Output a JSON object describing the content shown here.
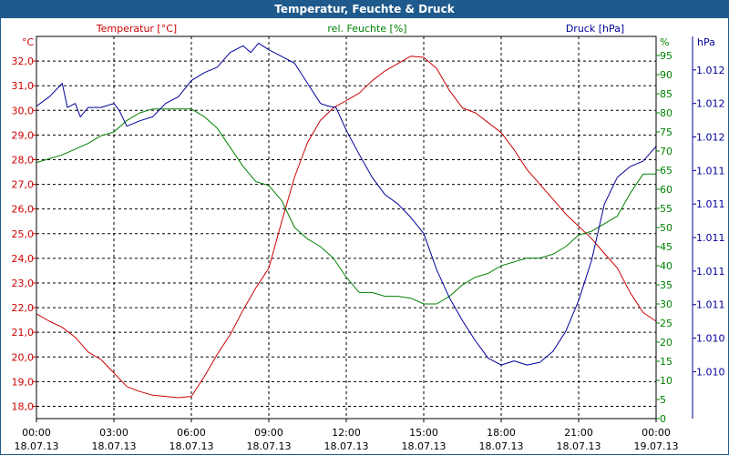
{
  "window": {
    "title": "Temperatur, Feuchte & Druck"
  },
  "colors": {
    "temperature": "#cc0000",
    "humidity": "#008000",
    "pressure": "#000099",
    "titlebar": "#1f5a8c",
    "grid": "#000000",
    "text": "#000000"
  },
  "chart_data": {
    "type": "line",
    "title": "Temperatur, Feuchte & Druck",
    "grid": true,
    "legend_position": "top",
    "x_axis": {
      "unit": "hours",
      "range": [
        0,
        24
      ],
      "ticks": [
        {
          "x": 0,
          "time": "00:00",
          "date": "18.07.13"
        },
        {
          "x": 3,
          "time": "03:00",
          "date": "18.07.13"
        },
        {
          "x": 6,
          "time": "06:00",
          "date": "18.07.13"
        },
        {
          "x": 9,
          "time": "09:00",
          "date": "18.07.13"
        },
        {
          "x": 12,
          "time": "12:00",
          "date": "18.07.13"
        },
        {
          "x": 15,
          "time": "15:00",
          "date": "18.07.13"
        },
        {
          "x": 18,
          "time": "18:00",
          "date": "18.07.13"
        },
        {
          "x": 21,
          "time": "21:00",
          "date": "18.07.13"
        },
        {
          "x": 24,
          "time": "00:00",
          "date": "19.07.13"
        }
      ]
    },
    "axes": {
      "temperature": {
        "unit_label": "°C",
        "range": [
          17.5,
          33.0
        ],
        "ticks": [
          18.0,
          19.0,
          20.0,
          21.0,
          22.0,
          23.0,
          24.0,
          25.0,
          26.0,
          27.0,
          28.0,
          29.0,
          30.0,
          31.0,
          32.0
        ],
        "tick_labels": [
          "18,0",
          "19,0",
          "20,0",
          "21,0",
          "22,0",
          "23,0",
          "24,0",
          "25,0",
          "26,0",
          "27,0",
          "28,0",
          "29,0",
          "30,0",
          "31,0",
          "32,0"
        ]
      },
      "humidity": {
        "unit_label": "%",
        "range": [
          0,
          100
        ],
        "ticks": [
          0,
          5,
          10,
          15,
          20,
          25,
          30,
          35,
          40,
          45,
          50,
          55,
          60,
          65,
          70,
          75,
          80,
          85,
          90,
          95
        ],
        "tick_labels": [
          "0",
          "5",
          "10",
          "15",
          "20",
          "25",
          "30",
          "35",
          "40",
          "45",
          "50",
          "55",
          "60",
          "65",
          "70",
          "75",
          "80",
          "85",
          "90",
          "95"
        ]
      },
      "pressure": {
        "unit_label": "hPa",
        "range": [
          1009.6,
          1012.45
        ],
        "ticks": [
          1009.95,
          1010.2,
          1010.45,
          1010.7,
          1010.95,
          1011.2,
          1011.45,
          1011.7,
          1011.95,
          1012.2
        ],
        "tick_labels": [
          "1.010",
          "1.010",
          "1.011",
          "1.011",
          "1.011",
          "1.011",
          "1.011",
          "1.012",
          "1.012",
          "1.012"
        ]
      }
    },
    "series": [
      {
        "name": "Temperatur [°C]",
        "axis": "temperature",
        "x": [
          0,
          0.5,
          1,
          1.5,
          2,
          2.5,
          3,
          3.5,
          4,
          4.5,
          5,
          5.5,
          6,
          6.5,
          7,
          7.5,
          8,
          8.5,
          9,
          9.5,
          10,
          10.5,
          11,
          11.5,
          12,
          12.5,
          13,
          13.5,
          14,
          14.5,
          15,
          15.5,
          16,
          16.5,
          17,
          17.5,
          18,
          18.5,
          19,
          19.5,
          20,
          20.5,
          21,
          21.5,
          22,
          22.5,
          23,
          23.5,
          24
        ],
        "values": [
          21.75,
          21.45,
          21.2,
          20.8,
          20.2,
          19.9,
          19.35,
          18.8,
          18.6,
          18.45,
          18.4,
          18.35,
          18.4,
          19.2,
          20.1,
          20.9,
          21.9,
          22.8,
          23.6,
          25.5,
          27.3,
          28.7,
          29.6,
          30.1,
          30.4,
          30.7,
          31.2,
          31.6,
          31.9,
          32.2,
          32.15,
          31.7,
          30.8,
          30.1,
          29.9,
          29.5,
          29.1,
          28.4,
          27.6,
          27.0,
          26.4,
          25.8,
          25.3,
          24.8,
          24.2,
          23.6,
          22.6,
          21.8,
          21.45
        ]
      },
      {
        "name": "rel. Feuchte [%]",
        "axis": "humidity",
        "x": [
          0,
          0.5,
          1,
          1.5,
          2,
          2.5,
          3,
          3.5,
          4,
          4.5,
          5,
          5.5,
          6,
          6.5,
          7,
          7.5,
          8,
          8.5,
          9,
          9.5,
          10,
          10.5,
          11,
          11.5,
          12,
          12.5,
          13,
          13.5,
          14,
          14.5,
          15,
          15.5,
          16,
          16.5,
          17,
          17.5,
          18,
          18.5,
          19,
          19.5,
          20,
          20.5,
          21,
          21.5,
          22,
          22.5,
          23,
          23.5,
          24
        ],
        "values": [
          67,
          68,
          69,
          70.5,
          72,
          74,
          75,
          78,
          80,
          81,
          81,
          81,
          81,
          79,
          76,
          71,
          66,
          62,
          61,
          57,
          50,
          47,
          45,
          42,
          37,
          33,
          33,
          32,
          32,
          31.5,
          30,
          30,
          32,
          35,
          37,
          38,
          40,
          41,
          42,
          42,
          43,
          45,
          48,
          49,
          51,
          53,
          59,
          64,
          64
        ]
      },
      {
        "name": "Druck [hPa]",
        "axis": "pressure",
        "x": [
          0,
          0.5,
          1,
          1.2,
          1.5,
          1.7,
          2,
          2.5,
          3,
          3.2,
          3.5,
          4,
          4.5,
          5,
          5.5,
          6,
          6.5,
          7,
          7.5,
          8,
          8.3,
          8.6,
          9,
          9.5,
          10,
          10.5,
          11,
          11.3,
          11.6,
          12,
          12.5,
          13,
          13.5,
          14,
          14.5,
          15,
          15.5,
          16,
          16.5,
          17,
          17.5,
          18,
          18.5,
          19,
          19.5,
          20,
          20.5,
          21,
          21.5,
          22,
          22.5,
          23,
          23.5,
          24
        ],
        "values": [
          1011.93,
          1012.0,
          1012.1,
          1011.92,
          1011.95,
          1011.85,
          1011.92,
          1011.92,
          1011.95,
          1011.9,
          1011.78,
          1011.82,
          1011.85,
          1011.95,
          1012.0,
          1012.12,
          1012.18,
          1012.22,
          1012.33,
          1012.38,
          1012.33,
          1012.4,
          1012.35,
          1012.3,
          1012.25,
          1012.1,
          1011.95,
          1011.93,
          1011.92,
          1011.75,
          1011.57,
          1011.4,
          1011.27,
          1011.2,
          1011.1,
          1010.98,
          1010.71,
          1010.5,
          1010.33,
          1010.18,
          1010.05,
          1010.0,
          1010.03,
          1010.0,
          1010.02,
          1010.1,
          1010.25,
          1010.48,
          1010.78,
          1011.2,
          1011.4,
          1011.48,
          1011.52,
          1011.63
        ]
      }
    ]
  }
}
